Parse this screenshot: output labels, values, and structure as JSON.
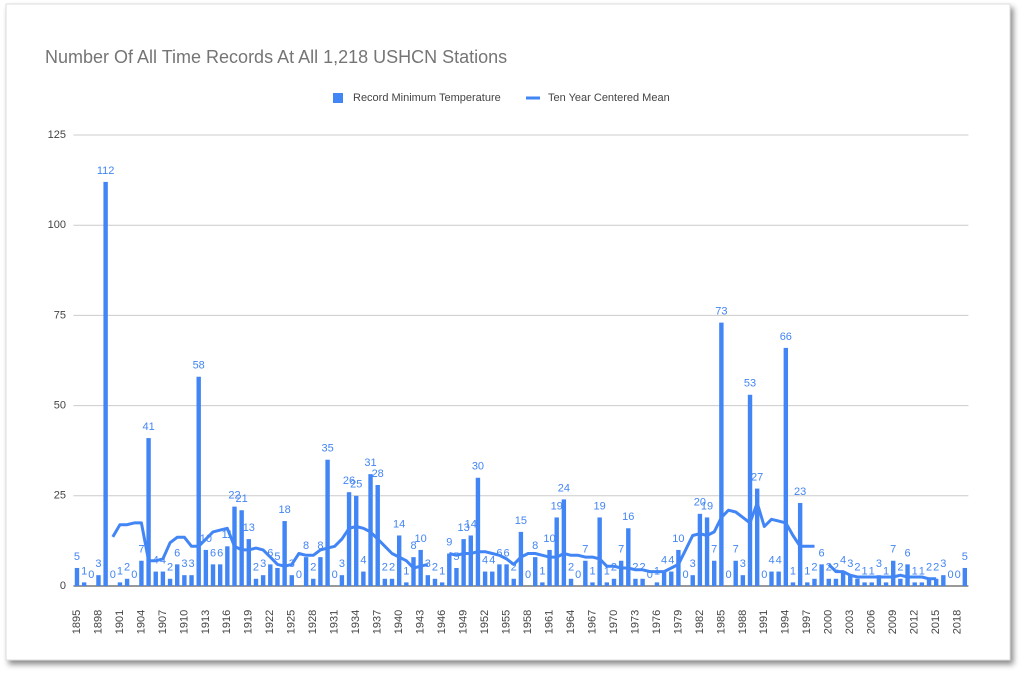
{
  "chart_data": {
    "type": "bar_line",
    "title": "Number Of All Time Records At All 1,218 USHCN Stations",
    "categories": [
      "1895",
      null,
      null,
      "1898",
      null,
      null,
      "1901",
      null,
      null,
      "1904",
      null,
      null,
      "1907",
      null,
      null,
      "1910",
      null,
      null,
      "1913",
      null,
      null,
      "1916",
      null,
      null,
      "1919",
      null,
      null,
      "1922",
      null,
      null,
      "1925",
      null,
      null,
      "1928",
      null,
      null,
      "1931",
      null,
      null,
      "1934",
      null,
      null,
      "1937",
      null,
      null,
      "1940",
      null,
      null,
      "1943",
      null,
      null,
      "1946",
      null,
      null,
      "1949",
      null,
      null,
      "1952",
      null,
      null,
      "1955",
      null,
      null,
      "1958",
      null,
      null,
      "1961",
      null,
      null,
      "1964",
      null,
      null,
      "1967",
      null,
      null,
      "1970",
      null,
      null,
      "1973",
      null,
      null,
      "1976",
      null,
      null,
      "1979",
      null,
      null,
      "1982",
      null,
      null,
      "1985",
      null,
      null,
      "1988",
      null,
      null,
      "1991",
      null,
      null,
      "1994",
      null,
      null,
      "1997",
      null,
      null,
      "2000",
      null,
      null,
      "2003",
      null,
      null,
      "2006",
      null,
      null,
      "2009",
      null,
      null,
      "2012",
      null,
      null,
      "2015",
      null,
      null,
      "2018",
      null
    ],
    "series": [
      {
        "name": "Record Minimum Temperature",
        "type": "bar",
        "color": "#4285f4",
        "values": [
          5,
          1,
          0,
          3,
          112,
          0,
          1,
          2,
          0,
          7,
          41,
          4,
          4,
          2,
          6,
          3,
          3,
          58,
          10,
          6,
          6,
          11,
          22,
          21,
          13,
          2,
          3,
          6,
          5,
          18,
          3,
          0,
          8,
          2,
          8,
          35,
          0,
          3,
          26,
          25,
          4,
          31,
          28,
          2,
          2,
          14,
          1,
          8,
          10,
          3,
          2,
          1,
          9,
          5,
          13,
          14,
          30,
          4,
          4,
          6,
          6,
          2,
          15,
          0,
          8,
          1,
          10,
          19,
          24,
          2,
          0,
          7,
          1,
          19,
          1,
          2,
          7,
          16,
          2,
          2,
          0,
          1,
          4,
          4,
          10,
          0,
          3,
          20,
          19,
          7,
          73,
          0,
          7,
          3,
          53,
          27,
          0,
          4,
          4,
          66,
          1,
          23,
          1,
          2,
          6,
          2,
          2,
          4,
          3,
          2,
          1,
          1,
          3,
          1,
          7,
          2,
          6,
          1,
          1,
          2,
          2,
          3,
          0,
          0,
          5
        ]
      },
      {
        "name": "Ten Year Centered Mean",
        "type": "line",
        "color": "#4285f4",
        "values": [
          null,
          null,
          null,
          null,
          null,
          13.6,
          17,
          17,
          17.5,
          17.5,
          7,
          7,
          7.5,
          12,
          13.5,
          13.5,
          11,
          11,
          13,
          15,
          15.5,
          16,
          11,
          10,
          10,
          10.5,
          10,
          8,
          6,
          5.5,
          6,
          9,
          8.5,
          8.5,
          10,
          10.5,
          11,
          13,
          16,
          16.5,
          16,
          15,
          13,
          11,
          9,
          8,
          7,
          5,
          5.5,
          6,
          null,
          null,
          9,
          8.5,
          9,
          9,
          9.5,
          9.5,
          9,
          8.5,
          7.5,
          6,
          8,
          9,
          9,
          8.5,
          8,
          8,
          9,
          8.5,
          8.5,
          8,
          8,
          7.5,
          5.5,
          5.5,
          5,
          5,
          4.5,
          4.5,
          4,
          4,
          4,
          5,
          6,
          10,
          14,
          14.5,
          14,
          15,
          19,
          21,
          20.5,
          19,
          17.5,
          23,
          16.5,
          18.5,
          18,
          17.5,
          14,
          11,
          11,
          11,
          null,
          6,
          4,
          4,
          3,
          2.5,
          2.5,
          2.5,
          2.5,
          2.5,
          2.5,
          3,
          2.5,
          2.5,
          2.5,
          2,
          2,
          null,
          null,
          null,
          null
        ]
      }
    ],
    "ylim": [
      0,
      125
    ],
    "yticks": [
      0,
      25,
      50,
      75,
      100,
      125
    ],
    "grid": true,
    "legend": "top"
  }
}
